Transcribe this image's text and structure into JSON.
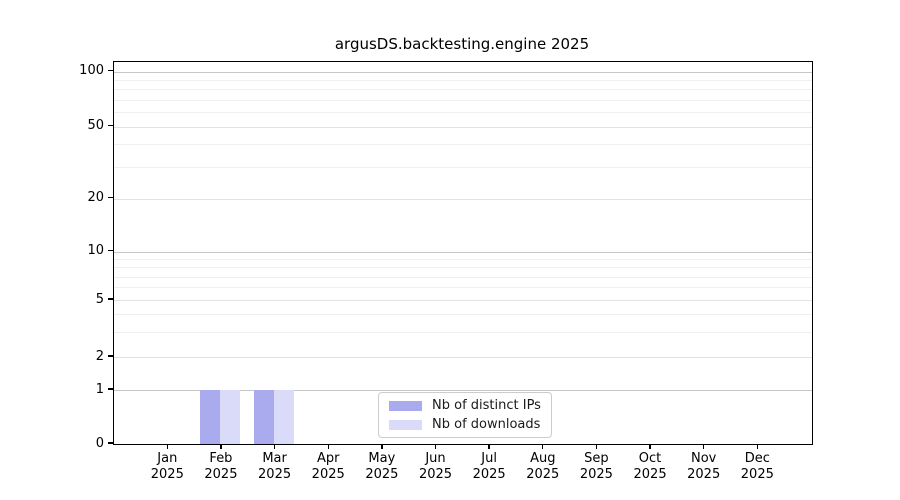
{
  "title": "argusDS.backtesting.engine 2025",
  "chart_data": {
    "type": "bar",
    "title": "argusDS.backtesting.engine 2025",
    "categories": [
      {
        "month": "Jan",
        "year": "2025"
      },
      {
        "month": "Feb",
        "year": "2025"
      },
      {
        "month": "Mar",
        "year": "2025"
      },
      {
        "month": "Apr",
        "year": "2025"
      },
      {
        "month": "May",
        "year": "2025"
      },
      {
        "month": "Jun",
        "year": "2025"
      },
      {
        "month": "Jul",
        "year": "2025"
      },
      {
        "month": "Aug",
        "year": "2025"
      },
      {
        "month": "Sep",
        "year": "2025"
      },
      {
        "month": "Oct",
        "year": "2025"
      },
      {
        "month": "Nov",
        "year": "2025"
      },
      {
        "month": "Dec",
        "year": "2025"
      }
    ],
    "series": [
      {
        "name": "Nb of distinct IPs",
        "color": "#aaaaef",
        "values": [
          0,
          1,
          1,
          0,
          0,
          0,
          0,
          0,
          0,
          0,
          0,
          0
        ]
      },
      {
        "name": "Nb of downloads",
        "color": "#dadaf9",
        "values": [
          0,
          1,
          1,
          0,
          0,
          0,
          0,
          0,
          0,
          0,
          0,
          0
        ]
      }
    ],
    "yaxis": {
      "scale": "symlog",
      "ticks": [
        0,
        1,
        2,
        5,
        10,
        20,
        50,
        100
      ],
      "minor_ticks": [
        3,
        4,
        6,
        7,
        8,
        9,
        30,
        40,
        60,
        70,
        80,
        90
      ],
      "ylim": [
        0,
        113
      ]
    },
    "grid": true,
    "legend": {
      "position": "lower center",
      "entries": [
        "Nb of distinct IPs",
        "Nb of downloads"
      ]
    }
  }
}
